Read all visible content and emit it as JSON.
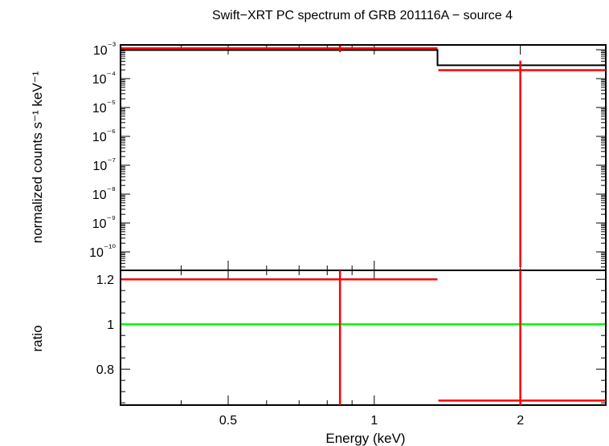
{
  "chart_data": [
    {
      "type": "line",
      "title": "Swift−XRT PC spectrum of GRB 201116A − source 4",
      "ylabel": "normalized counts s⁻¹ keV⁻¹",
      "yscale": "log",
      "ylim": [
        3e-11,
        0.0016
      ],
      "ytick_labels": [
        "10⁻³",
        "10⁻⁴",
        "10⁻⁵",
        "10⁻⁶",
        "10⁻⁷",
        "10⁻⁸",
        "10⁻⁹",
        "10⁻¹⁰"
      ],
      "ytick_values": [
        0.001,
        0.0001,
        1e-05,
        1e-06,
        1e-07,
        1e-08,
        1e-09,
        1e-10
      ],
      "xscale": "log",
      "xlim": [
        0.3,
        3.0
      ],
      "series": [
        {
          "kind": "model-step",
          "color": "#000000",
          "steps": [
            {
              "x0": 0.3,
              "x1": 1.35,
              "y": 0.00098
            },
            {
              "x0": 1.35,
              "x1": 3.0,
              "y": 0.00029
            }
          ]
        },
        {
          "kind": "data-errorbar",
          "color": "#ff0000",
          "points": [
            {
              "x0": 0.3,
              "x1": 1.35,
              "x": 0.85,
              "y": 0.00112,
              "ylo": 0.00082,
              "yhi": 0.00152
            },
            {
              "x0": 1.35,
              "x1": 3.0,
              "x": 2.0,
              "y": 0.000195,
              "ylo": 3e-11,
              "yhi": 0.00042
            }
          ]
        }
      ]
    },
    {
      "type": "line",
      "xlabel": "Energy (keV)",
      "ylabel": "ratio",
      "xscale": "log",
      "xlim": [
        0.3,
        3.0
      ],
      "ylim": [
        0.64,
        1.24
      ],
      "ytick_values": [
        0.8,
        1,
        1.2
      ],
      "ytick_labels": [
        "0.8",
        "1",
        "1.2"
      ],
      "xtick_values": [
        0.5,
        1,
        2
      ],
      "xtick_labels": [
        "0.5",
        "1",
        "2"
      ],
      "reference_line": {
        "y": 1,
        "color": "#00ff00"
      },
      "series": [
        {
          "kind": "data-errorbar",
          "color": "#ff0000",
          "points": [
            {
              "x0": 0.3,
              "x1": 1.35,
              "x": 0.85,
              "y": 1.2,
              "ylo": 0.64,
              "yhi": 1.24
            },
            {
              "x0": 1.35,
              "x1": 3.0,
              "x": 2.0,
              "y": 0.66,
              "ylo": 0.64,
              "yhi": 1.24
            }
          ]
        }
      ]
    }
  ]
}
